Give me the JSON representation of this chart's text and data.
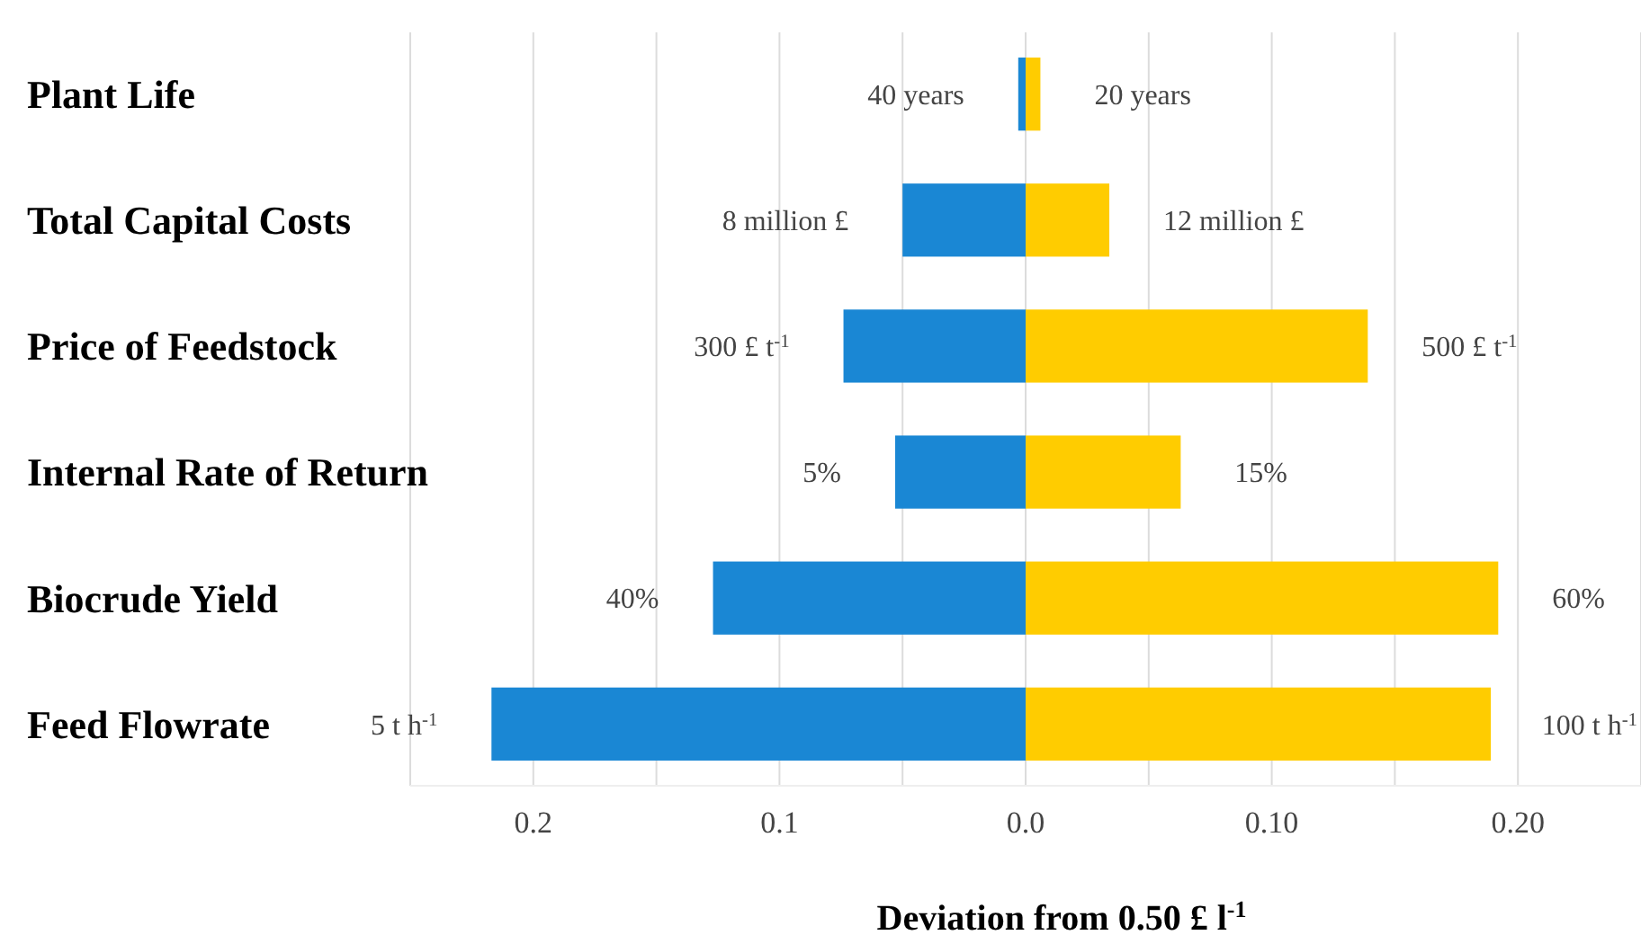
{
  "chart_data": {
    "type": "bar",
    "orientation": "horizontal",
    "stacked": true,
    "xlabel": "Deviation from 0.50 £ l$^{-1}$",
    "categories": [
      "Plant Life",
      "Total Capital Costs",
      "Price of Feedstock",
      "Internal Rate of Return",
      "Biocrude Yield",
      "Feed Flowrate"
    ],
    "series": [
      {
        "color": "#1a87d4",
        "values": [
          -0.003,
          -0.05,
          -0.074,
          -0.053,
          -0.127,
          -0.217
        ]
      },
      {
        "color": "#ffcc00",
        "values": [
          0.006,
          0.034,
          0.139,
          0.063,
          0.192,
          0.189
        ]
      }
    ],
    "annotations": [
      {
        "text": "40 years",
        "x": -0.003,
        "y": "Plant Life"
      },
      {
        "text": "20 years",
        "x": 0.006,
        "y": "Plant Life"
      },
      {
        "text": "8 million £",
        "x": -0.05,
        "y": "Total Capital Costs"
      },
      {
        "text": "12 million £",
        "x": 0.034,
        "y": "Total Capital Costs"
      },
      {
        "text": "300 £ t$^{-1}$",
        "x": -0.074,
        "y": "Price of Feedstock"
      },
      {
        "text": "500 £ t$^{-1}$",
        "x": 0.139,
        "y": "Price of Feedstock"
      },
      {
        "text": "5%",
        "x": -0.053,
        "y": "Internal Rate of Return"
      },
      {
        "text": "15%",
        "x": 0.063,
        "y": "Internal Rate of Return"
      },
      {
        "text": "40%",
        "x": -0.127,
        "y": "Biocrude Yield"
      },
      {
        "text": "60%",
        "x": 0.192,
        "y": "Biocrude Yield"
      },
      {
        "text": "5 t h$^{-1}$",
        "x": -0.217,
        "y": "Feed Flowrate"
      },
      {
        "text": "100 t h$^{-1}$",
        "x": 0.189,
        "y": "Feed Flowrate"
      }
    ],
    "xlim": [
      -0.25,
      0.25
    ],
    "xticks": [
      {
        "value": -0.25,
        "label": null
      },
      {
        "value": -0.2,
        "label": "0.2"
      },
      {
        "value": -0.15,
        "label": null
      },
      {
        "value": -0.1,
        "label": "0.1"
      },
      {
        "value": -0.05,
        "label": null
      },
      {
        "value": 0,
        "label": "0.0"
      },
      {
        "value": 0.05,
        "label": null
      },
      {
        "value": 0.1,
        "label": "0.10"
      },
      {
        "value": 0.15,
        "label": null
      },
      {
        "value": 0.2,
        "label": "0.20"
      },
      {
        "value": 0.25,
        "label": null
      }
    ],
    "grid": "x"
  }
}
